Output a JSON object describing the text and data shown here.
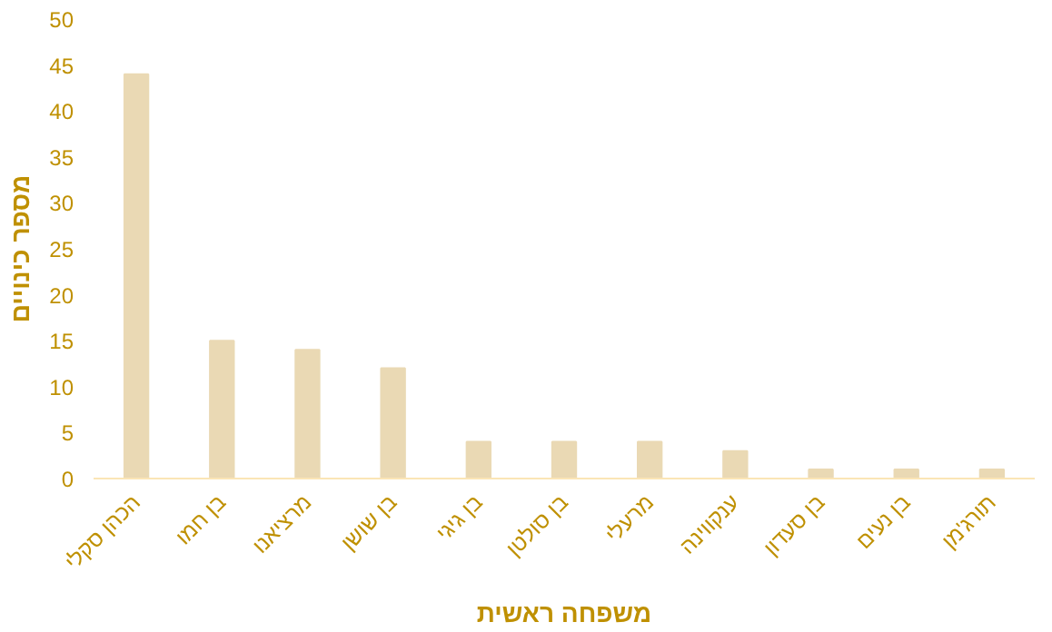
{
  "chart_data": {
    "type": "bar",
    "xlabel": "משפחה ראשית",
    "ylabel": "מספר כינויים",
    "categories": [
      "הכהן סקלי",
      "בן חמו",
      "מרציאנו",
      "בן שושן",
      "בן גיגי",
      "בן סולטן",
      "מרעלי",
      "ענקווינה",
      "בן סעדון",
      "בן נעים",
      "תורג'מן"
    ],
    "values": [
      44,
      15,
      14,
      12,
      4,
      4,
      4,
      3,
      1,
      1,
      1
    ],
    "color": "#ead9b4",
    "ylim": [
      0,
      50
    ],
    "yticks": [
      0,
      5,
      10,
      15,
      20,
      25,
      30,
      35,
      40,
      45,
      50
    ],
    "grid": false
  }
}
